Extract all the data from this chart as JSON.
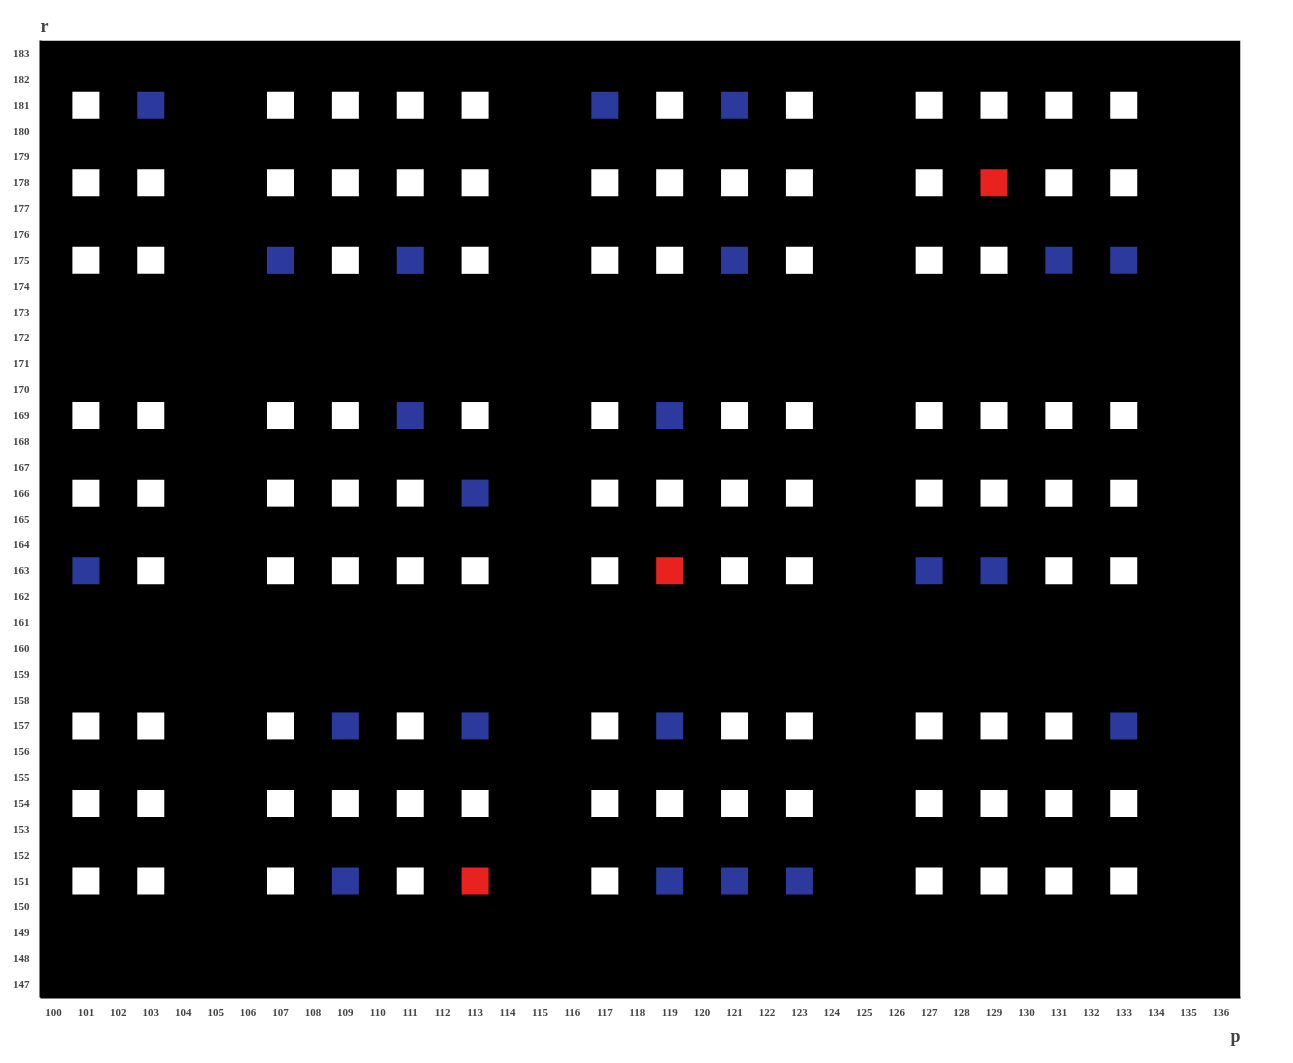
{
  "chart_data": {
    "type": "scatter",
    "xlabel": "p",
    "ylabel": "r",
    "marker": "square",
    "xlim": [
      99.6,
      136.6
    ],
    "ylim": [
      146.5,
      183.5
    ],
    "xticks": [
      100,
      101,
      102,
      103,
      104,
      105,
      106,
      107,
      108,
      109,
      110,
      111,
      112,
      113,
      114,
      115,
      116,
      117,
      118,
      119,
      120,
      121,
      122,
      123,
      124,
      125,
      126,
      127,
      128,
      129,
      130,
      131,
      132,
      133,
      134,
      135,
      136
    ],
    "yticks": [
      147,
      148,
      149,
      150,
      151,
      152,
      153,
      154,
      155,
      156,
      157,
      158,
      159,
      160,
      161,
      162,
      163,
      164,
      165,
      166,
      167,
      168,
      169,
      170,
      171,
      172,
      173,
      174,
      175,
      176,
      177,
      178,
      179,
      180,
      181,
      182,
      183
    ],
    "series": [
      {
        "color": "#ffffff",
        "x": [
          101,
          107,
          109,
          111,
          113,
          119,
          123,
          127,
          129,
          131,
          133,
          101,
          103,
          107,
          109,
          111,
          113,
          117,
          119,
          121,
          123,
          127,
          131,
          133,
          101,
          103,
          109,
          113,
          117,
          119,
          123,
          127,
          129,
          101,
          103,
          107,
          109,
          113,
          117,
          121,
          123,
          127,
          129,
          131,
          133,
          101,
          103,
          107,
          109,
          111,
          117,
          119,
          121,
          123,
          127,
          129,
          131,
          133,
          103,
          107,
          109,
          111,
          113,
          117,
          121,
          123,
          131,
          133,
          101,
          103,
          107,
          111,
          117,
          121,
          123,
          127,
          129,
          131,
          101,
          103,
          107,
          109,
          111,
          113,
          117,
          119,
          121,
          123,
          127,
          129,
          131,
          133,
          101,
          103,
          107,
          111,
          117,
          127,
          129,
          131,
          133
        ],
        "values": [
          181,
          181,
          181,
          181,
          181,
          181,
          181,
          181,
          181,
          181,
          181,
          178,
          178,
          178,
          178,
          178,
          178,
          178,
          178,
          178,
          178,
          178,
          178,
          178,
          175,
          175,
          175,
          175,
          175,
          175,
          175,
          175,
          175,
          169,
          169,
          169,
          169,
          169,
          169,
          169,
          169,
          169,
          169,
          169,
          169,
          166,
          166,
          166,
          166,
          166,
          166,
          166,
          166,
          166,
          166,
          166,
          166,
          166,
          163,
          163,
          163,
          163,
          163,
          163,
          163,
          163,
          163,
          163,
          157,
          157,
          157,
          157,
          157,
          157,
          157,
          157,
          157,
          157,
          154,
          154,
          154,
          154,
          154,
          154,
          154,
          154,
          154,
          154,
          154,
          154,
          154,
          154,
          151,
          151,
          151,
          151,
          151,
          151,
          151,
          151,
          151
        ]
      },
      {
        "color": "#2b3a9c",
        "x": [
          103,
          117,
          121,
          107,
          111,
          121,
          131,
          133,
          111,
          119,
          113,
          101,
          127,
          129,
          109,
          113,
          119,
          133,
          109,
          119,
          121,
          123
        ],
        "values": [
          181,
          181,
          181,
          175,
          175,
          175,
          175,
          175,
          169,
          169,
          166,
          163,
          163,
          163,
          157,
          157,
          157,
          157,
          151,
          151,
          151,
          151
        ]
      },
      {
        "color": "#e8221e",
        "x": [
          129,
          119,
          113
        ],
        "values": [
          178,
          163,
          151
        ]
      }
    ]
  }
}
